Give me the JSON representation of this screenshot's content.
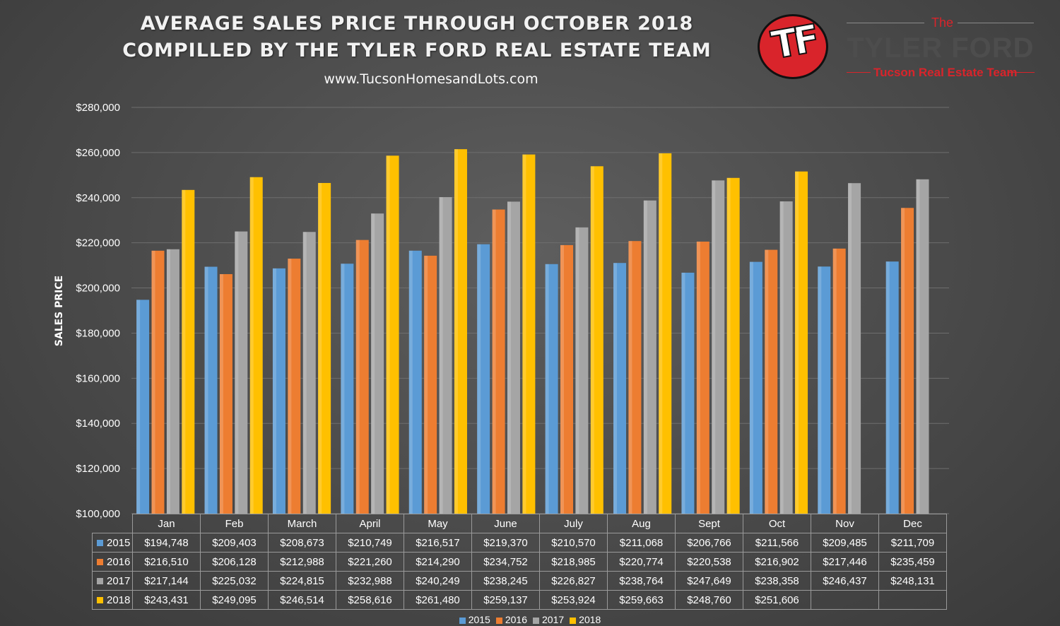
{
  "header": {
    "title_line1": "AVERAGE SALES PRICE THROUGH OCTOBER 2018",
    "title_line2": "COMPILLED BY THE TYLER FORD REAL ESTATE TEAM",
    "website": "www.TucsonHomesandLots.com"
  },
  "logo": {
    "mark": "TF",
    "the": "The",
    "brand": "TYLER FORD",
    "tagline": "Tucson Real Estate Team",
    "color": "#d9242b"
  },
  "chart_data": {
    "type": "bar",
    "title": "AVERAGE SALES PRICE THROUGH OCTOBER 2018",
    "xlabel": "",
    "ylabel": "SALES PRICE",
    "ylim": [
      100000,
      280000
    ],
    "yticks": [
      "$100,000",
      "$120,000",
      "$140,000",
      "$160,000",
      "$180,000",
      "$200,000",
      "$220,000",
      "$240,000",
      "$260,000",
      "$280,000"
    ],
    "grid": true,
    "legend": "bottom",
    "categories": [
      "Jan",
      "Feb",
      "March",
      "April",
      "May",
      "June",
      "July",
      "Aug",
      "Sept",
      "Oct",
      "Nov",
      "Dec"
    ],
    "series": [
      {
        "name": "2015",
        "color": "#5b9bd5",
        "values": [
          194748,
          209403,
          208673,
          210749,
          216517,
          219370,
          210570,
          211068,
          206766,
          211566,
          209485,
          211709
        ],
        "labels": [
          "$194,748",
          "$209,403",
          "$208,673",
          "$210,749",
          "$216,517",
          "$219,370",
          "$210,570",
          "$211,068",
          "$206,766",
          "$211,566",
          "$209,485",
          "$211,709"
        ]
      },
      {
        "name": "2016",
        "color": "#ed7d31",
        "values": [
          216510,
          206128,
          212988,
          221260,
          214290,
          234752,
          218985,
          220774,
          220538,
          216902,
          217446,
          235459
        ],
        "labels": [
          "$216,510",
          "$206,128",
          "$212,988",
          "$221,260",
          "$214,290",
          "$234,752",
          "$218,985",
          "$220,774",
          "$220,538",
          "$216,902",
          "$217,446",
          "$235,459"
        ]
      },
      {
        "name": "2017",
        "color": "#a5a5a5",
        "values": [
          217144,
          225032,
          224815,
          232988,
          240249,
          238245,
          226827,
          238764,
          247649,
          238358,
          246437,
          248131
        ],
        "labels": [
          "$217,144",
          "$225,032",
          "$224,815",
          "$232,988",
          "$240,249",
          "$238,245",
          "$226,827",
          "$238,764",
          "$247,649",
          "$238,358",
          "$246,437",
          "$248,131"
        ]
      },
      {
        "name": "2018",
        "color": "#ffc000",
        "values": [
          243431,
          249095,
          246514,
          258616,
          261480,
          259137,
          253924,
          259663,
          248760,
          251606,
          null,
          null
        ],
        "labels": [
          "$243,431",
          "$249,095",
          "$246,514",
          "$258,616",
          "$261,480",
          "$259,137",
          "$253,924",
          "$259,663",
          "$248,760",
          "$251,606",
          "",
          ""
        ]
      }
    ]
  }
}
